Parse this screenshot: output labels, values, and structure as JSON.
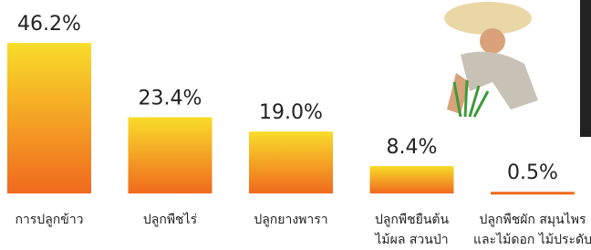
{
  "chart_data": {
    "type": "bar",
    "categories": [
      [
        "การปลูกข้าว"
      ],
      [
        "ปลูกพืชไร่"
      ],
      [
        "ปลูกยางพารา"
      ],
      [
        "ปลูกพืชยืนต้น",
        "ไม้ผล สวนป่า"
      ],
      [
        "ปลูกพืชผัก สมุนไพร",
        "และไม้ดอก ไม้ประดับ"
      ]
    ],
    "values": [
      46.2,
      23.4,
      19.0,
      8.4,
      0.5
    ],
    "value_labels": [
      "46.2%",
      "23.4%",
      "19.0%",
      "8.4%",
      "0.5%"
    ],
    "colors": [
      "#f8dc2a",
      "#f06a1e"
    ]
  }
}
